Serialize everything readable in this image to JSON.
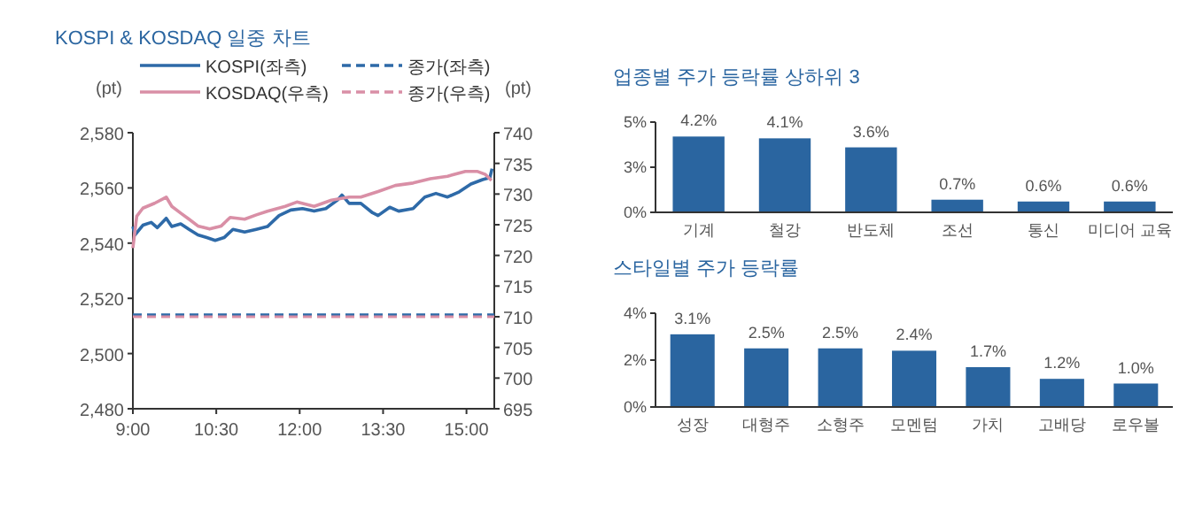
{
  "chart_data": [
    {
      "type": "line",
      "title": "KOSPI & KOSDAQ 일중 차트",
      "ylabel": "(pt)",
      "y2label": "(pt)",
      "legend": "top",
      "xlim": [
        9,
        15.5
      ],
      "xticks": [
        {
          "value": 9,
          "label": "9:00"
        },
        {
          "value": 10.5,
          "label": "10:30"
        },
        {
          "value": 12,
          "label": "12:00"
        },
        {
          "value": 13.5,
          "label": "13:30"
        },
        {
          "value": 15,
          "label": "15:00"
        }
      ],
      "ylim": [
        2480,
        2580
      ],
      "yticks": [
        {
          "value": 2480,
          "label": "2,480"
        },
        {
          "value": 2500,
          "label": "2,500"
        },
        {
          "value": 2520,
          "label": "2,520"
        },
        {
          "value": 2540,
          "label": "2,540"
        },
        {
          "value": 2560,
          "label": "2,560"
        },
        {
          "value": 2580,
          "label": "2,580"
        }
      ],
      "y2lim": [
        695,
        740
      ],
      "y2ticks": [
        695,
        700,
        705,
        710,
        715,
        720,
        725,
        730,
        735,
        740
      ],
      "series": [
        {
          "name": "KOSPI(좌측)",
          "color": "#2e6aa8",
          "x": [
            9,
            9.04,
            9.18,
            9.33,
            9.44,
            9.6,
            9.7,
            9.86,
            10.01,
            10.17,
            10.33,
            10.48,
            10.64,
            10.8,
            11.01,
            11.22,
            11.42,
            11.63,
            11.84,
            12.05,
            12.26,
            12.47,
            12.68,
            12.76,
            12.89,
            13.1,
            13.31,
            13.41,
            13.62,
            13.78,
            14.04,
            14.25,
            14.45,
            14.66,
            14.87,
            15.08,
            15.29,
            15.42,
            15.46
          ],
          "values": [
            2546,
            2543,
            2546.5,
            2547.5,
            2545.6,
            2549,
            2546,
            2547,
            2545,
            2543,
            2542,
            2541,
            2542,
            2545,
            2544,
            2545,
            2546,
            2550,
            2552,
            2552.5,
            2551.6,
            2552.5,
            2555.6,
            2557.4,
            2554.4,
            2554.4,
            2551,
            2550,
            2553,
            2551.6,
            2552.5,
            2556.7,
            2558,
            2556.7,
            2558.6,
            2561.4,
            2563,
            2563.7,
            2567
          ]
        },
        {
          "name": "종가(좌측)",
          "color": "#2e6aa8",
          "line_style": "dashed",
          "x": [
            9,
            15.5
          ],
          "values": [
            2514,
            2514
          ]
        },
        {
          "name": "KOSDAQ(우측)",
          "color": "#d98fa6",
          "axis": "y2",
          "x": [
            9,
            9.07,
            9.18,
            9.39,
            9.6,
            9.7,
            9.86,
            10.01,
            10.17,
            10.38,
            10.59,
            10.75,
            11.01,
            11.22,
            11.42,
            11.74,
            11.95,
            12.26,
            12.57,
            12.89,
            13.1,
            13.41,
            13.72,
            14.04,
            14.35,
            14.66,
            14.98,
            15.19,
            15.34,
            15.45
          ],
          "values": [
            721.2,
            726.4,
            727.7,
            728.5,
            729.5,
            728,
            726.9,
            725.9,
            724.8,
            724.3,
            724.8,
            726.2,
            725.9,
            726.6,
            727.2,
            728,
            728.7,
            728,
            729,
            729.5,
            729.5,
            730.4,
            731.4,
            731.8,
            732.5,
            732.9,
            733.7,
            733.7,
            733.2,
            732.2
          ]
        },
        {
          "name": "종가(우측)",
          "color": "#d98fa6",
          "axis": "y2",
          "line_style": "dashed",
          "x": [
            9,
            15.5
          ],
          "values": [
            710,
            710
          ]
        }
      ]
    },
    {
      "type": "bar",
      "title": "업종별 주가 등락률 상하위 3",
      "categories": [
        "기계",
        "철강",
        "반도체",
        "조선",
        "통신",
        "미디어 교육"
      ],
      "values": [
        4.2,
        4.1,
        3.6,
        0.7,
        0.6,
        0.6
      ],
      "value_labels": [
        "4.2%",
        "4.1%",
        "3.6%",
        "0.7%",
        "0.6%",
        "0.6%"
      ],
      "color": "#2a65a0",
      "ylim": [
        0,
        5
      ],
      "yticks": [
        {
          "value": 0,
          "label": "0%"
        },
        {
          "value": 2.5,
          "label": "3%"
        },
        {
          "value": 5,
          "label": "5%"
        }
      ]
    },
    {
      "type": "bar",
      "title": "스타일별 주가 등락률",
      "categories": [
        "성장",
        "대형주",
        "소형주",
        "모멘텀",
        "가치",
        "고배당",
        "로우볼"
      ],
      "values": [
        3.1,
        2.5,
        2.5,
        2.4,
        1.7,
        1.2,
        1.0
      ],
      "value_labels": [
        "3.1%",
        "2.5%",
        "2.5%",
        "2.4%",
        "1.7%",
        "1.2%",
        "1.0%"
      ],
      "color": "#2a65a0",
      "ylim": [
        0,
        4
      ],
      "yticks": [
        {
          "value": 0,
          "label": "0%"
        },
        {
          "value": 2,
          "label": "2%"
        },
        {
          "value": 4,
          "label": "4%"
        }
      ]
    }
  ]
}
